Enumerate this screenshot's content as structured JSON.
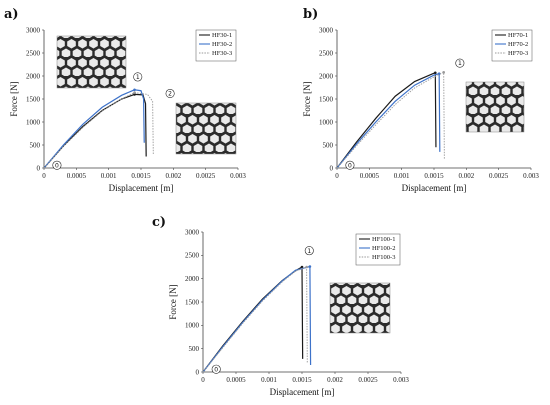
{
  "colors": {
    "series1": "#1a1a1a",
    "series2": "#3d72c9",
    "series3": "#9a9a9a"
  },
  "chart_data": [
    {
      "type": "line",
      "panel_label": "a)",
      "xlabel": "Displacement [m]",
      "ylabel": "Force [N]",
      "xlim": [
        0,
        0.003
      ],
      "ylim": [
        0,
        3000
      ],
      "x_ticks": [
        "0",
        "0.0005",
        "0.001",
        "0.0015",
        "0.002",
        "0.0025",
        "0.003"
      ],
      "y_ticks": [
        "0",
        "500",
        "1000",
        "1500",
        "2000",
        "2500",
        "3000"
      ],
      "legend_position": "top-right",
      "inset_images": 2,
      "markers": [
        {
          "label": "0",
          "x": 0.0002,
          "y": 60
        },
        {
          "label": "1",
          "x": 0.00145,
          "y": 1980
        },
        {
          "label": "2",
          "x": 0.00195,
          "y": 1620
        }
      ],
      "series": [
        {
          "name": "HF30-1",
          "style": "solid",
          "color_key": "series1",
          "points": [
            [
              0,
              0
            ],
            [
              0.0003,
              480
            ],
            [
              0.0006,
              900
            ],
            [
              0.0009,
              1250
            ],
            [
              0.0012,
              1500
            ],
            [
              0.0014,
              1600
            ],
            [
              0.00153,
              1590
            ],
            [
              0.00157,
              1400
            ],
            [
              0.00158,
              250
            ]
          ]
        },
        {
          "name": "HF30-2",
          "style": "solid",
          "color_key": "series2",
          "points": [
            [
              0,
              0
            ],
            [
              0.0003,
              500
            ],
            [
              0.0006,
              950
            ],
            [
              0.0009,
              1320
            ],
            [
              0.0012,
              1580
            ],
            [
              0.0014,
              1700
            ],
            [
              0.0015,
              1680
            ],
            [
              0.00154,
              1500
            ],
            [
              0.00155,
              550
            ]
          ]
        },
        {
          "name": "HF30-3",
          "style": "dotted",
          "color_key": "series3",
          "points": [
            [
              0,
              0
            ],
            [
              0.0003,
              470
            ],
            [
              0.0006,
              880
            ],
            [
              0.0009,
              1240
            ],
            [
              0.0012,
              1500
            ],
            [
              0.0014,
              1640
            ],
            [
              0.0016,
              1600
            ],
            [
              0.00168,
              1450
            ],
            [
              0.00169,
              300
            ]
          ]
        }
      ]
    },
    {
      "type": "line",
      "panel_label": "b)",
      "xlabel": "Displacement [m]",
      "ylabel": "Force [N]",
      "xlim": [
        0,
        0.003
      ],
      "ylim": [
        0,
        3000
      ],
      "x_ticks": [
        "0",
        "0.0005",
        "0.001",
        "0.0015",
        "0.002",
        "0.0025",
        "0.003"
      ],
      "y_ticks": [
        "0",
        "500",
        "1000",
        "1500",
        "2000",
        "2500",
        "3000"
      ],
      "legend_position": "top-right",
      "inset_images": 1,
      "markers": [
        {
          "label": "0",
          "x": 0.0002,
          "y": 60
        },
        {
          "label": "1",
          "x": 0.0019,
          "y": 2280
        }
      ],
      "series": [
        {
          "name": "HF70-1",
          "style": "solid",
          "color_key": "series1",
          "points": [
            [
              0,
              0
            ],
            [
              0.0003,
              560
            ],
            [
              0.0006,
              1080
            ],
            [
              0.0009,
              1560
            ],
            [
              0.0012,
              1880
            ],
            [
              0.0015,
              2060
            ],
            [
              0.00152,
              2070
            ],
            [
              0.00153,
              450
            ]
          ]
        },
        {
          "name": "HF70-2",
          "style": "solid",
          "color_key": "series2",
          "points": [
            [
              0,
              0
            ],
            [
              0.0003,
              520
            ],
            [
              0.0006,
              1000
            ],
            [
              0.0009,
              1450
            ],
            [
              0.0012,
              1800
            ],
            [
              0.0015,
              2020
            ],
            [
              0.00158,
              2050
            ],
            [
              0.00159,
              350
            ]
          ]
        },
        {
          "name": "HF70-3",
          "style": "dotted",
          "color_key": "series3",
          "points": [
            [
              0,
              0
            ],
            [
              0.0003,
              480
            ],
            [
              0.0006,
              940
            ],
            [
              0.0009,
              1380
            ],
            [
              0.0012,
              1740
            ],
            [
              0.0015,
              1980
            ],
            [
              0.00165,
              2080
            ],
            [
              0.00166,
              200
            ]
          ]
        }
      ]
    },
    {
      "type": "line",
      "panel_label": "c)",
      "xlabel": "Displacement [m]",
      "ylabel": "Force [N]",
      "xlim": [
        0,
        0.003
      ],
      "ylim": [
        0,
        3000
      ],
      "x_ticks": [
        "0",
        "0.0005",
        "0.001",
        "0.0015",
        "0.002",
        "0.0025",
        "0.003"
      ],
      "y_ticks": [
        "0",
        "500",
        "1000",
        "1500",
        "2000",
        "2500",
        "3000"
      ],
      "legend_position": "top-right",
      "inset_images": 1,
      "markers": [
        {
          "label": "0",
          "x": 0.0002,
          "y": 60
        },
        {
          "label": "1",
          "x": 0.00161,
          "y": 2600
        }
      ],
      "series": [
        {
          "name": "HF100-1",
          "style": "solid",
          "color_key": "series1",
          "points": [
            [
              0,
              0
            ],
            [
              0.0003,
              560
            ],
            [
              0.0006,
              1080
            ],
            [
              0.0009,
              1560
            ],
            [
              0.0012,
              1960
            ],
            [
              0.0014,
              2170
            ],
            [
              0.0015,
              2250
            ],
            [
              0.00151,
              280
            ]
          ]
        },
        {
          "name": "HF100-2",
          "style": "solid",
          "color_key": "series2",
          "points": [
            [
              0,
              0
            ],
            [
              0.0003,
              540
            ],
            [
              0.0006,
              1060
            ],
            [
              0.0009,
              1540
            ],
            [
              0.0012,
              1950
            ],
            [
              0.0014,
              2180
            ],
            [
              0.00162,
              2260
            ],
            [
              0.00163,
              150
            ]
          ]
        },
        {
          "name": "HF100-3",
          "style": "dotted",
          "color_key": "series3",
          "points": [
            [
              0,
              0
            ],
            [
              0.0003,
              520
            ],
            [
              0.0006,
              1040
            ],
            [
              0.0009,
              1520
            ],
            [
              0.0012,
              1930
            ],
            [
              0.0014,
              2160
            ],
            [
              0.00157,
              2250
            ],
            [
              0.00158,
              200
            ]
          ]
        }
      ]
    }
  ]
}
